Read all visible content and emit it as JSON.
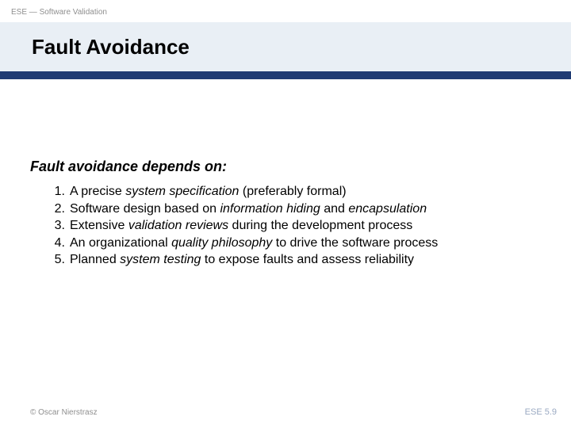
{
  "colors": {
    "title_band_bg": "#e9eff5",
    "rule_bg": "#1f3b73",
    "header_text": "#8f8f8f",
    "body_text": "#000000",
    "pagenum_text": "#9aa9c2",
    "background": "#ffffff"
  },
  "typography": {
    "header_fontsize": 10,
    "title_fontsize": 26,
    "subtitle_fontsize": 18,
    "list_fontsize": 16,
    "footer_fontsize": 10,
    "pagenum_fontsize": 11
  },
  "header": {
    "course_label": "ESE — Software Validation"
  },
  "title": "Fault Avoidance",
  "subtitle": "Fault avoidance depends on:",
  "list": {
    "items": [
      {
        "num": "1.",
        "html": "A precise <em class='kw'>system specification</em> (preferably formal)"
      },
      {
        "num": "2.",
        "html": "Software design based on <em class='kw'>information hiding</em> and <em class='kw'>encapsulation</em>"
      },
      {
        "num": "3.",
        "html": "Extensive <em class='kw'>validation reviews</em> during the development process"
      },
      {
        "num": "4.",
        "html": "An organizational <em class='kw'>quality philosophy</em> to drive the software process"
      },
      {
        "num": "5.",
        "html": "Planned <em class='kw'>system testing</em> to expose faults and assess reliability"
      }
    ]
  },
  "footer": {
    "copyright": "© Oscar Nierstrasz",
    "pagenum": "ESE 5.9"
  }
}
